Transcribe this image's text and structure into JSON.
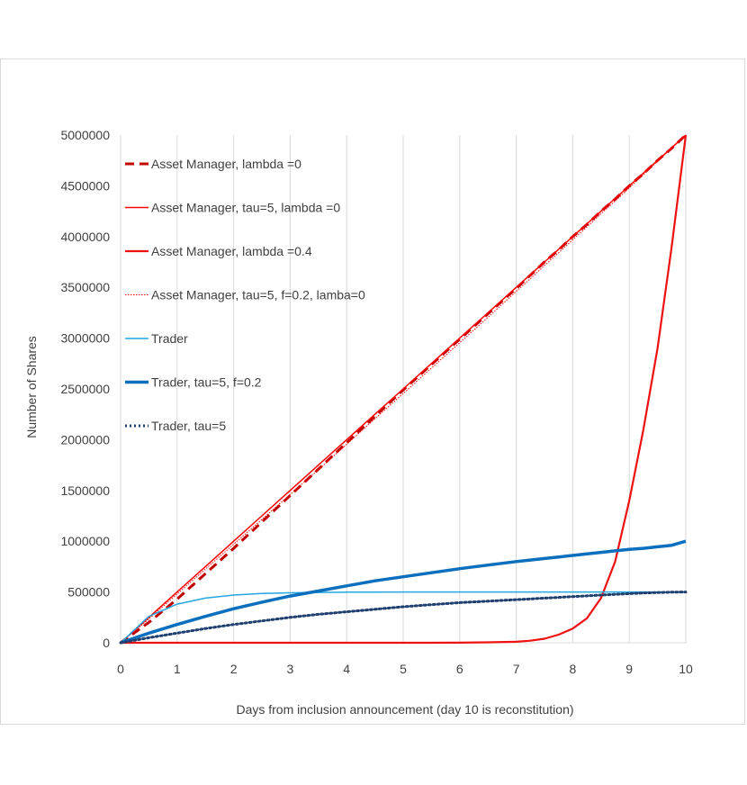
{
  "chart_data": {
    "type": "line",
    "title": "",
    "xlabel": "Days from inclusion announcement (day 10 is reconstitution)",
    "ylabel": "Number of Shares",
    "xlim": [
      0,
      10
    ],
    "ylim": [
      0,
      5000000
    ],
    "x_ticks": [
      "0",
      "1",
      "2",
      "3",
      "4",
      "5",
      "6",
      "7",
      "8",
      "9",
      "10"
    ],
    "y_ticks": [
      "0",
      "500000",
      "1000000",
      "1500000",
      "2000000",
      "2500000",
      "3000000",
      "3500000",
      "4000000",
      "4500000",
      "5000000"
    ],
    "grid": "vertical",
    "legend_position": "top-left",
    "x": [
      0,
      0.5,
      1,
      1.5,
      2,
      2.5,
      3,
      3.5,
      4,
      4.5,
      5,
      5.5,
      6,
      6.5,
      7,
      7.25,
      7.5,
      7.75,
      8,
      8.25,
      8.5,
      8.75,
      9,
      9.25,
      9.5,
      9.75,
      10
    ],
    "series": [
      {
        "name": "Asset Manager, lambda =0",
        "color": "#c00000",
        "style": "dashed",
        "values": [
          0,
          200000,
          430000,
          680000,
          930000,
          1190000,
          1450000,
          1710000,
          1970000,
          2230000,
          2490000,
          2740000,
          2990000,
          3240000,
          3490000,
          3620000,
          3750000,
          3870000,
          4000000,
          4120000,
          4250000,
          4370000,
          4500000,
          4620000,
          4750000,
          4870000,
          5000000
        ]
      },
      {
        "name": "Asset Manager, tau=5, lambda =0",
        "color": "#ff0000",
        "style": "thin",
        "values": [
          0,
          250000,
          500000,
          750000,
          1000000,
          1250000,
          1500000,
          1750000,
          2000000,
          2250000,
          2500000,
          2750000,
          3000000,
          3250000,
          3500000,
          3625000,
          3750000,
          3875000,
          4000000,
          4125000,
          4250000,
          4375000,
          4500000,
          4625000,
          4750000,
          4875000,
          5000000
        ]
      },
      {
        "name": "Asset Manager, lambda =0.4",
        "color": "#ee1111",
        "style": "medium",
        "values": [
          0,
          0,
          0,
          0,
          0,
          0,
          0,
          0,
          0,
          0,
          0,
          0,
          1000,
          4000,
          10000,
          20000,
          40000,
          80000,
          140000,
          240000,
          440000,
          800000,
          1400000,
          2100000,
          2900000,
          3900000,
          5000000
        ]
      },
      {
        "name": "Asset Manager, tau=5, f=0.2, lamba=0",
        "color": "#ff0000",
        "style": "dotted-thin",
        "values": [
          0,
          235000,
          480000,
          725000,
          970000,
          1215000,
          1460000,
          1705000,
          1955000,
          2205000,
          2455000,
          2705000,
          2955000,
          3205000,
          3460000,
          3585000,
          3715000,
          3840000,
          3970000,
          4095000,
          4225000,
          4350000,
          4480000,
          4610000,
          4740000,
          4870000,
          5000000
        ]
      },
      {
        "name": "Trader",
        "color": "#22a7e0",
        "style": "thin",
        "values": [
          0,
          260000,
          380000,
          440000,
          470000,
          485000,
          492000,
          496000,
          498000,
          499000,
          500000,
          500000,
          500000,
          500000,
          500000,
          500000,
          500000,
          500000,
          500000,
          500000,
          500000,
          500000,
          500000,
          500000,
          500000,
          500000,
          500000
        ]
      },
      {
        "name": "Trader, tau=5, f=0.2",
        "color": "#0b6fbd",
        "style": "thick",
        "values": [
          0,
          95000,
          180000,
          260000,
          335000,
          400000,
          460000,
          510000,
          560000,
          610000,
          650000,
          690000,
          730000,
          765000,
          800000,
          815000,
          830000,
          845000,
          860000,
          875000,
          890000,
          905000,
          920000,
          930000,
          945000,
          960000,
          1000000
        ]
      },
      {
        "name": "Trader, tau=5",
        "color": "#1f3f6e",
        "style": "dotted",
        "values": [
          0,
          50000,
          95000,
          140000,
          180000,
          215000,
          250000,
          280000,
          305000,
          330000,
          355000,
          375000,
          395000,
          410000,
          425000,
          432000,
          440000,
          447000,
          455000,
          462000,
          470000,
          477000,
          484000,
          490000,
          495000,
          498000,
          500000
        ]
      }
    ]
  }
}
